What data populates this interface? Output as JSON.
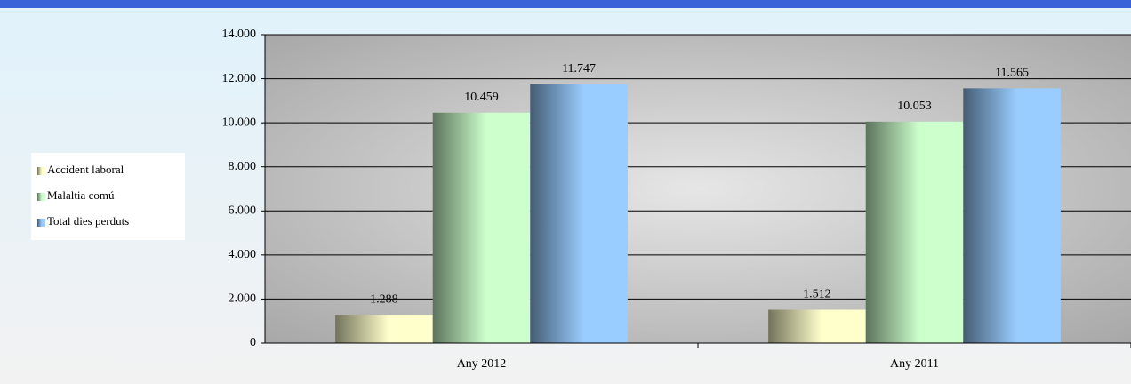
{
  "chart_data": {
    "type": "bar",
    "categories": [
      "Any 2012",
      "Any 2011"
    ],
    "series": [
      {
        "name": "Accident laboral",
        "color": "#ffffcc",
        "values": [
          1288,
          1512
        ],
        "value_labels": [
          "1.288",
          "1.512"
        ]
      },
      {
        "name": "Malaltia comú",
        "color": "#ccffcc",
        "values": [
          10459,
          10053
        ],
        "value_labels": [
          "10.459",
          "10.053"
        ]
      },
      {
        "name": "Total dies perduts",
        "color": "#99ccff",
        "values": [
          11747,
          11565
        ],
        "value_labels": [
          "11.747",
          "11.565"
        ]
      }
    ],
    "ylim": [
      0,
      14000
    ],
    "yticks": [
      0,
      {
        "value": 2000,
        "label": "2.000"
      },
      {
        "value": 4000,
        "label": "4.000"
      },
      {
        "value": 6000,
        "label": "6.000"
      },
      {
        "value": 8000,
        "label": "8.000"
      },
      {
        "value": 10000,
        "label": "10.000"
      },
      {
        "value": 12000,
        "label": "12.000"
      },
      {
        "value": 14000,
        "label": "14.000"
      }
    ],
    "grid": true,
    "legend": "left"
  }
}
